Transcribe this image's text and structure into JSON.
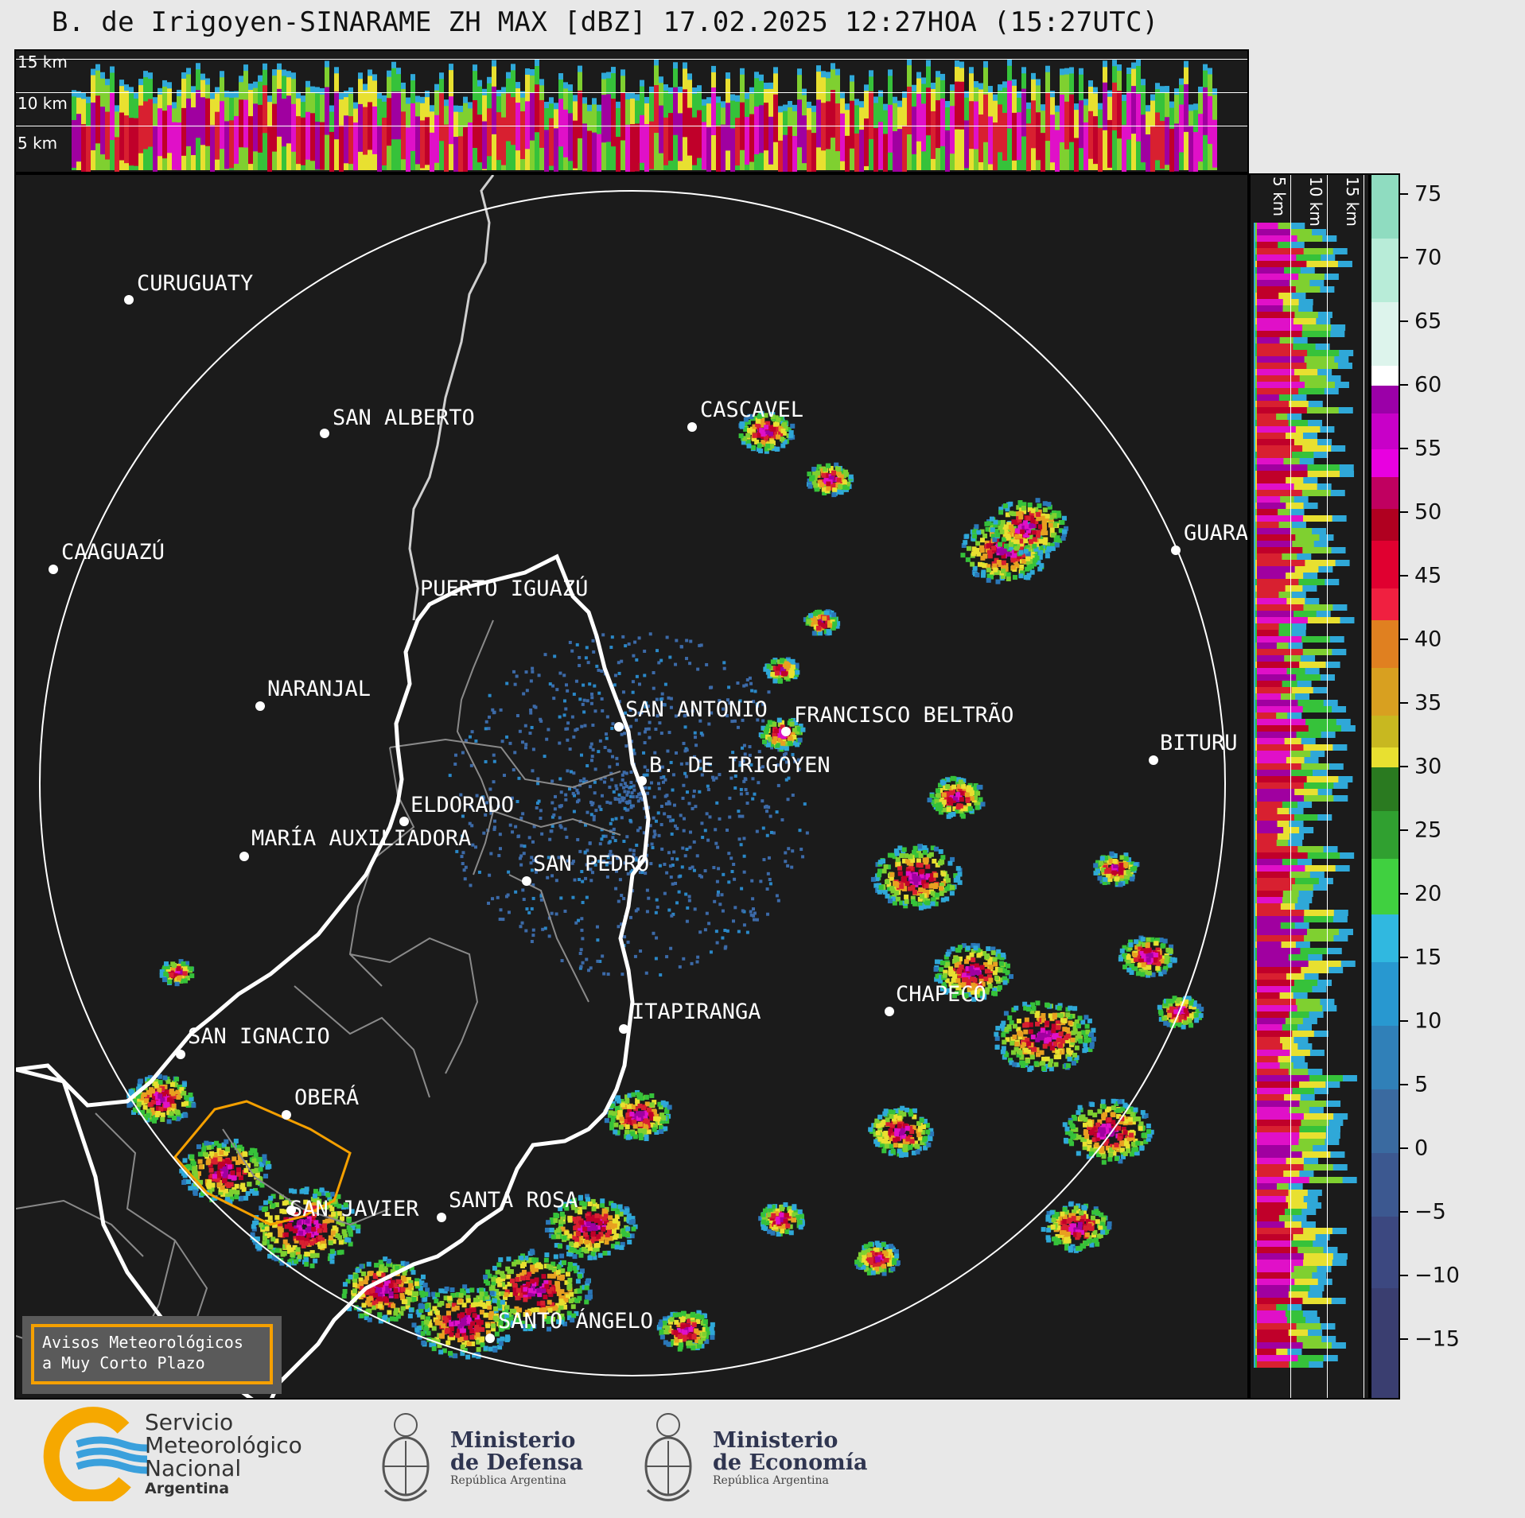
{
  "title": "B. de Irigoyen-SINARAME ZH MAX [dBZ] 17.02.2025 12:27HOA (15:27UTC)",
  "top_panel": {
    "altitude_labels": [
      "15 km",
      "10 km",
      "5 km"
    ]
  },
  "side_panel": {
    "altitude_labels": [
      "5 km",
      "10 km",
      "15 km"
    ]
  },
  "colorbar": {
    "unit": "dBZ",
    "ticks": [
      "75",
      "70",
      "65",
      "60",
      "55",
      "50",
      "45",
      "40",
      "35",
      "30",
      "25",
      "20",
      "15",
      "10",
      "5",
      "0",
      "−5",
      "−10",
      "−15"
    ],
    "range": [
      -20,
      76
    ]
  },
  "cities": [
    {
      "name": "CURUGUATY"
    },
    {
      "name": "SAN ALBERTO"
    },
    {
      "name": "CASCAVEL"
    },
    {
      "name": "CAAGUAZÚ"
    },
    {
      "name": "GUARA"
    },
    {
      "name": "PUERTO IGUAZÚ"
    },
    {
      "name": "NARANJAL"
    },
    {
      "name": "SAN ANTONIO"
    },
    {
      "name": "FRANCISCO BELTRÃO"
    },
    {
      "name": "BITURU"
    },
    {
      "name": "B. DE IRIGOYEN"
    },
    {
      "name": "ELDORADO"
    },
    {
      "name": "MARÍA AUXILIADORA"
    },
    {
      "name": "SAN PEDRO"
    },
    {
      "name": "ITAPIRANGA"
    },
    {
      "name": "CHAPECÓ"
    },
    {
      "name": "SAN IGNACIO"
    },
    {
      "name": "OBERÁ"
    },
    {
      "name": "SAN JAVIER"
    },
    {
      "name": "SANTA ROSA"
    },
    {
      "name": "SANTO ÁNGELO"
    }
  ],
  "warning_box": {
    "line1": "Avisos Meteorológicos",
    "line2": "a Muy Corto Plazo"
  },
  "logos": {
    "smn": {
      "line1": "Servicio",
      "line2": "Meteorológico",
      "line3": "Nacional",
      "line4": "Argentina"
    },
    "defensa": {
      "line1": "Ministerio",
      "line2": "de Defensa",
      "line3": "República Argentina"
    },
    "economia": {
      "line1": "Ministerio",
      "line2": "de Economía",
      "line3": "República Argentina"
    }
  },
  "colors": {
    "panel_bg": "#1b1b1b",
    "warning_border": "#f5a000",
    "smn_orange": "#f6a800",
    "smn_blue": "#3aa0dc"
  }
}
